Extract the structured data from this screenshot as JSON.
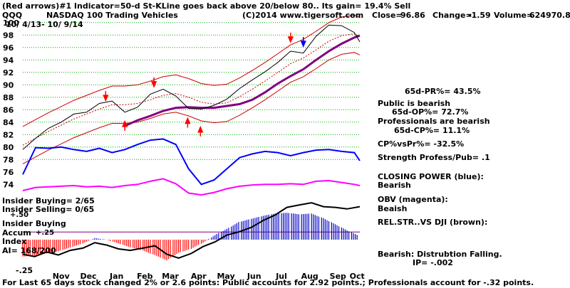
{
  "header": {
    "line1": "(Red arrows)#1 Indicator=50-d St-KLine goes back above 20/below 80.. Its gain= 19.4% Sell",
    "ticker": "QQQ",
    "name": "NASDAQ 100 Trading Vehicles",
    "copyright": "(C)2014 www.tigersoft.com",
    "close_label": "Close=",
    "close_value": "96.86",
    "change_label": "Change=",
    "change_value": "-1.59",
    "volume_label": "Volume=",
    "volume_value": "624970.86",
    "date_range": "10/ 4/13- 10/ 9/14"
  },
  "right_panel": [
    "65d-PR%= 43.5%",
    "Public is bearish",
    "65d-OP%= 72.7%",
    "Professionals are bearish",
    "65d-CP%= 11.1%",
    "CP%vsPr%= -32.5%",
    "Strength Profess/Pub= .1",
    "CLOSING POWER (blue):",
    "Bearish",
    "OBV (magenta):",
    "Beaish",
    "REL.STR..VS DJI (brown):",
    "Bearish:  Distrubtion Falling.",
    "IP= -.002"
  ],
  "left_panel": {
    "insider_buying": "Insider Buying= 2/65",
    "insider_selling": "Insider Selling= 0/65",
    "plus50": "+.50",
    "accum_lines": [
      "Insider Buying",
      "Accum",
      "Index"
    ],
    "plus25": "+.25",
    "ai": "AI= 168/200",
    "minus25": "-.25"
  },
  "footer": "For Last 65 days stock changed  2% or  2.6 points:  Public accounts for  2.92 points.;  Professionals account for -.32 points.",
  "colors": {
    "price": "#000000",
    "ma_short": "#cc0000",
    "ma_long": "#800080",
    "closing_power": "#0000ff",
    "obv": "#ff00ff",
    "grid": "#00aa00",
    "arrow": "#ff0000",
    "accum": "#0000c8",
    "accum_neg": "#ff0000",
    "rel_str": "#000000"
  },
  "chart_data": {
    "type": "line",
    "title": "NASDAQ 100 Trading Vehicles",
    "x_tick_labels": [
      "Nov",
      "Dec",
      "Jan",
      "Feb",
      "Mar",
      "Apr",
      "May",
      "Jun",
      "Jul",
      "Aug",
      "Sep",
      "Oct"
    ],
    "y_tick_labels": [
      "100",
      "98",
      "96",
      "94",
      "92",
      "90",
      "88",
      "86",
      "84",
      "82",
      "80",
      "78",
      "76",
      "74"
    ],
    "ylim": [
      73,
      101
    ],
    "grid": true,
    "x_dates": [
      "2013-10-04",
      "2013-10-18",
      "2013-11-01",
      "2013-11-15",
      "2013-11-29",
      "2013-12-13",
      "2013-12-27",
      "2014-01-10",
      "2014-01-24",
      "2014-02-07",
      "2014-02-21",
      "2014-03-07",
      "2014-03-21",
      "2014-04-04",
      "2014-04-18",
      "2014-05-02",
      "2014-05-16",
      "2014-05-30",
      "2014-06-13",
      "2014-06-27",
      "2014-07-11",
      "2014-07-25",
      "2014-08-08",
      "2014-08-22",
      "2014-09-05",
      "2014-09-19",
      "2014-10-03",
      "2014-10-09"
    ],
    "series": [
      {
        "key": "price",
        "values": [
          79.6,
          81.4,
          83.0,
          84.0,
          85.3,
          85.6,
          87.0,
          87.4,
          85.6,
          86.4,
          88.5,
          89.3,
          88.2,
          86.2,
          86.1,
          86.7,
          87.7,
          89.4,
          90.8,
          92.1,
          93.6,
          95.4,
          95.1,
          97.8,
          99.6,
          99.5,
          98.4,
          96.9
        ]
      },
      {
        "key": "ma_short",
        "values": [
          80.3,
          81.4,
          82.5,
          83.5,
          84.5,
          85.3,
          86.1,
          86.8,
          86.8,
          87.0,
          87.6,
          88.3,
          88.6,
          88.0,
          87.2,
          86.9,
          87.1,
          88.1,
          89.3,
          90.6,
          92.0,
          93.4,
          94.3,
          95.6,
          97.0,
          97.9,
          98.2,
          97.8
        ]
      },
      {
        "key": "band_upper",
        "values": [
          83.3,
          84.4,
          85.5,
          86.5,
          87.5,
          88.3,
          89.1,
          89.8,
          89.8,
          90.0,
          90.6,
          91.3,
          91.6,
          91.0,
          90.2,
          89.9,
          90.1,
          91.1,
          92.3,
          93.6,
          95.0,
          96.4,
          97.3,
          98.6,
          100.0,
          100.9,
          101.2,
          100.8
        ]
      },
      {
        "key": "band_lower",
        "values": [
          77.3,
          78.4,
          79.5,
          80.5,
          81.5,
          82.3,
          83.1,
          83.8,
          83.8,
          84.0,
          84.6,
          85.3,
          85.6,
          85.0,
          84.2,
          83.9,
          84.1,
          85.1,
          86.3,
          87.6,
          89.0,
          90.4,
          91.3,
          92.6,
          94.0,
          94.9,
          95.2,
          94.8
        ]
      },
      {
        "key": "ma_long",
        "values": [
          null,
          null,
          null,
          null,
          null,
          null,
          null,
          null,
          83.4,
          84.3,
          85.0,
          85.8,
          86.3,
          86.4,
          86.3,
          86.3,
          86.6,
          86.9,
          87.6,
          88.8,
          90.2,
          91.4,
          92.5,
          94.0,
          95.4,
          96.6,
          97.6,
          97.9
        ]
      },
      {
        "key": "closing_power",
        "values": [
          75.6,
          79.9,
          79.8,
          80.0,
          79.6,
          79.3,
          79.8,
          79.1,
          79.6,
          80.4,
          81.1,
          81.3,
          80.4,
          76.5,
          74.0,
          74.7,
          76.5,
          78.3,
          78.9,
          79.3,
          79.1,
          78.6,
          79.1,
          79.5,
          79.6,
          79.3,
          79.1,
          77.8
        ]
      },
      {
        "key": "obv",
        "values": [
          73.0,
          73.5,
          73.6,
          73.7,
          73.8,
          73.6,
          73.7,
          73.5,
          73.8,
          74.0,
          74.5,
          74.9,
          74.1,
          72.6,
          72.3,
          72.7,
          73.3,
          73.7,
          73.9,
          74.0,
          74.0,
          74.1,
          74.0,
          74.5,
          74.6,
          74.3,
          74.0,
          73.8
        ]
      }
    ],
    "red_arrows_down": [
      {
        "date": "2014-01-03",
        "value": 88.3
      },
      {
        "date": "2014-02-25",
        "value": 90.5
      },
      {
        "date": "2014-07-25",
        "value": 97.7
      }
    ],
    "red_arrows_up": [
      {
        "date": "2014-01-24",
        "value": 83.3
      },
      {
        "date": "2014-04-03",
        "value": 83.8
      },
      {
        "date": "2014-04-17",
        "value": 82.4
      }
    ],
    "blue_arrow_down": {
      "date": "2014-08-08",
      "value": 97.0
    },
    "accum_index_values": [
      -0.22,
      -0.21,
      -0.18,
      -0.15,
      -0.1,
      -0.05,
      0.02,
      0.0,
      -0.05,
      -0.1,
      -0.14,
      -0.2,
      -0.27,
      -0.17,
      -0.12,
      -0.04,
      0.06,
      0.14,
      0.23,
      0.27,
      0.31,
      0.34,
      0.35,
      0.33,
      0.34,
      0.28,
      0.2,
      0.12,
      0.05
    ],
    "rel_str_values": [
      -0.19,
      -0.22,
      -0.16,
      -0.2,
      -0.14,
      -0.11,
      -0.04,
      -0.07,
      -0.12,
      -0.14,
      -0.11,
      -0.08,
      -0.19,
      -0.24,
      -0.18,
      -0.09,
      -0.03,
      0.06,
      0.1,
      0.16,
      0.25,
      0.32,
      0.42,
      0.45,
      0.48,
      0.43,
      0.42,
      0.4,
      0.43
    ]
  }
}
